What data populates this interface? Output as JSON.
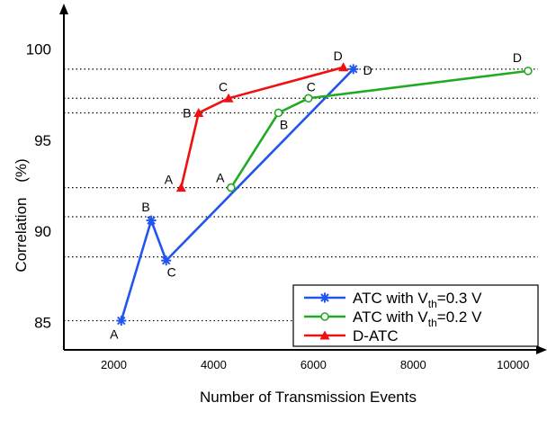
{
  "chart_data": {
    "type": "line",
    "title": "",
    "xlabel": "Number of Transmission Events",
    "ylabel": "Correlation",
    "ylabel_unit": "(%)",
    "xlim": [
      1000,
      10500
    ],
    "ylim": [
      83.5,
      102
    ],
    "x_ticks": [
      2000,
      4000,
      6000,
      8000,
      10000
    ],
    "y_ticks": [
      85,
      90,
      95,
      100
    ],
    "grid": "horizontal dotted reference lines",
    "reference_lines_y": [
      98.9,
      97.3,
      96.5,
      92.4,
      90.8,
      88.6,
      85.1
    ],
    "legend_position": "bottom-right",
    "series": [
      {
        "legend": {
          "main": "ATC with V",
          "sub": "th",
          "tail": "=0.3 V"
        },
        "color": "#2255ee",
        "marker": "star",
        "points": [
          {
            "x": 2150,
            "y": 85.1,
            "label": "A"
          },
          {
            "x": 2750,
            "y": 90.6,
            "label": "B"
          },
          {
            "x": 3050,
            "y": 88.4,
            "label": "C"
          },
          {
            "x": 6800,
            "y": 98.9,
            "label": "D"
          }
        ]
      },
      {
        "legend": {
          "main": "ATC with V",
          "sub": "th",
          "tail": "=0.2 V"
        },
        "color": "#22aa22",
        "marker": "circle",
        "points": [
          {
            "x": 4350,
            "y": 92.4,
            "label": "A"
          },
          {
            "x": 5300,
            "y": 96.5,
            "label": "B"
          },
          {
            "x": 5900,
            "y": 97.3,
            "label": "C"
          },
          {
            "x": 10300,
            "y": 98.8,
            "label": "D"
          }
        ]
      },
      {
        "legend": {
          "main": "D-ATC",
          "sub": "",
          "tail": ""
        },
        "color": "#ee1111",
        "marker": "triangle",
        "points": [
          {
            "x": 3350,
            "y": 92.4,
            "label": "A"
          },
          {
            "x": 3700,
            "y": 96.5,
            "label": "B"
          },
          {
            "x": 4300,
            "y": 97.3,
            "label": "C"
          },
          {
            "x": 6600,
            "y": 99.0,
            "label": "D"
          }
        ]
      }
    ]
  }
}
